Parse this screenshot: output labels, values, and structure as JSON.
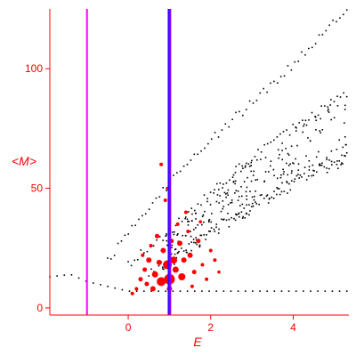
{
  "chart_data": {
    "type": "scatter",
    "title": "",
    "xlabel": "E",
    "ylabel": "<M>",
    "xlim": [
      -1.9,
      5.35
    ],
    "ylim": [
      -3,
      125
    ],
    "xticks": [
      0,
      2,
      4
    ],
    "yticks": [
      0,
      50,
      100
    ],
    "x_tick_labels": [
      "0",
      "2",
      "4"
    ],
    "y_tick_labels": [
      "0",
      "50",
      "100"
    ],
    "grid": false,
    "legend": "none",
    "colors": {
      "axis": "#ff0000",
      "black_points": "#000000",
      "red_points": "#ff0000",
      "magenta_line": "#ff00ff",
      "blue_line": "#3300ff",
      "violet_line": "#8800ff"
    },
    "vertical_lines": [
      {
        "x": -1.0,
        "color": "#ff00ff"
      },
      {
        "x": 0.98,
        "color": "#3300ff"
      },
      {
        "x": 1.02,
        "color": "#8800ff"
      }
    ],
    "black_curves": [
      {
        "x_start": -1.9,
        "x_end": 5.3,
        "shape": "arc",
        "points": 42,
        "anchor_x": [
          -1.9,
          -1.4,
          -1.0,
          -0.5,
          0.0
        ],
        "anchor_y": [
          13,
          14,
          11,
          9,
          7
        ]
      },
      {
        "x_start": -0.5,
        "x_end": 5.3,
        "shape": "upper",
        "points": 70,
        "anchor_x": [
          -0.5,
          0.5,
          1.5,
          2.5,
          3.5,
          4.5,
          5.3
        ],
        "anchor_y": [
          20,
          42,
          62,
          78,
          94,
          110,
          125
        ]
      },
      {
        "x_start": 0.0,
        "x_end": 5.3,
        "shape": "middle",
        "points": 70,
        "anchor_x": [
          0.0,
          1.0,
          2.0,
          3.0,
          4.0,
          5.0,
          5.3
        ],
        "anchor_y": [
          18,
          32,
          48,
          63,
          75,
          86,
          90
        ]
      },
      {
        "x_start": 0.5,
        "x_end": 5.3,
        "shape": "lower",
        "points": 80,
        "anchor_x": [
          0.5,
          1.5,
          2.5,
          3.5,
          4.5,
          5.3
        ],
        "anchor_y": [
          14,
          26,
          38,
          48,
          57,
          64
        ]
      }
    ],
    "red_points": [
      {
        "x": 0.95,
        "y": 18,
        "r": 5
      },
      {
        "x": 1.0,
        "y": 12,
        "r": 6
      },
      {
        "x": 0.8,
        "y": 11,
        "r": 5
      },
      {
        "x": 1.3,
        "y": 13,
        "r": 4
      },
      {
        "x": 1.1,
        "y": 20,
        "r": 4
      },
      {
        "x": 0.6,
        "y": 8,
        "r": 3
      },
      {
        "x": 0.5,
        "y": 20,
        "r": 3
      },
      {
        "x": 1.5,
        "y": 22,
        "r": 3
      },
      {
        "x": 1.7,
        "y": 28,
        "r": 2.5
      },
      {
        "x": 0.7,
        "y": 30,
        "r": 2.5
      },
      {
        "x": 1.2,
        "y": 35,
        "r": 2
      },
      {
        "x": 0.3,
        "y": 12,
        "r": 2.5
      },
      {
        "x": 0.2,
        "y": 8,
        "r": 2
      },
      {
        "x": 1.8,
        "y": 18,
        "r": 2
      },
      {
        "x": 2.0,
        "y": 24,
        "r": 2
      },
      {
        "x": 1.4,
        "y": 40,
        "r": 2
      },
      {
        "x": 0.9,
        "y": 45,
        "r": 2
      },
      {
        "x": 0.8,
        "y": 60,
        "r": 2
      },
      {
        "x": 0.1,
        "y": 6,
        "r": 2
      },
      {
        "x": 0.4,
        "y": 16,
        "r": 2.5
      },
      {
        "x": 1.6,
        "y": 15,
        "r": 2.5
      },
      {
        "x": 0.55,
        "y": 26,
        "r": 2
      },
      {
        "x": 1.25,
        "y": 27,
        "r": 3
      },
      {
        "x": 0.85,
        "y": 24,
        "r": 3
      },
      {
        "x": 1.05,
        "y": 28,
        "r": 2.5
      },
      {
        "x": 1.9,
        "y": 12,
        "r": 2
      },
      {
        "x": 0.35,
        "y": 22,
        "r": 2
      },
      {
        "x": 1.45,
        "y": 32,
        "r": 2
      },
      {
        "x": 2.1,
        "y": 20,
        "r": 2
      },
      {
        "x": 0.65,
        "y": 14,
        "r": 3.5
      },
      {
        "x": 1.15,
        "y": 16,
        "r": 3.5
      },
      {
        "x": 1.35,
        "y": 20,
        "r": 3
      },
      {
        "x": 0.75,
        "y": 19,
        "r": 3
      },
      {
        "x": 1.0,
        "y": 8,
        "r": 3
      },
      {
        "x": 0.45,
        "y": 10,
        "r": 2.5
      },
      {
        "x": 1.55,
        "y": 9,
        "r": 2
      },
      {
        "x": 0.95,
        "y": 50,
        "r": 1.8
      },
      {
        "x": 1.75,
        "y": 36,
        "r": 1.8
      },
      {
        "x": 2.2,
        "y": 15,
        "r": 1.8
      }
    ]
  }
}
